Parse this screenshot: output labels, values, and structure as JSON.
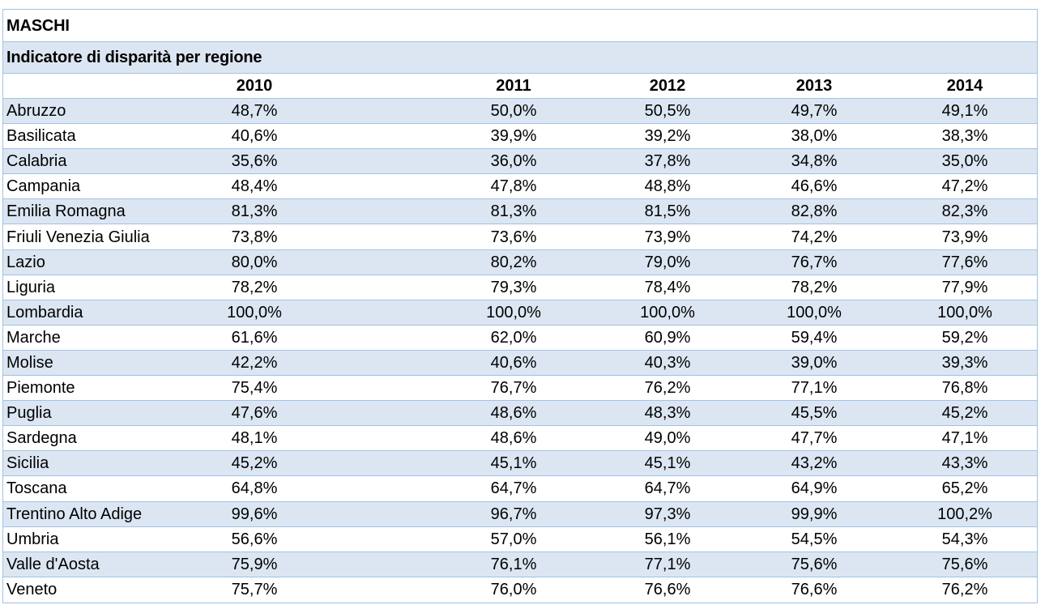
{
  "table": {
    "title": "MASCHI",
    "subtitle": "Indicatore di disparità per regione",
    "years": [
      "2010",
      "2011",
      "2012",
      "2013",
      "2014"
    ],
    "rows": [
      {
        "region": "Abruzzo",
        "values": [
          "48,7%",
          "50,0%",
          "50,5%",
          "49,7%",
          "49,1%"
        ]
      },
      {
        "region": "Basilicata",
        "values": [
          "40,6%",
          "39,9%",
          "39,2%",
          "38,0%",
          "38,3%"
        ]
      },
      {
        "region": "Calabria",
        "values": [
          "35,6%",
          "36,0%",
          "37,8%",
          "34,8%",
          "35,0%"
        ]
      },
      {
        "region": "Campania",
        "values": [
          "48,4%",
          "47,8%",
          "48,8%",
          "46,6%",
          "47,2%"
        ]
      },
      {
        "region": "Emilia Romagna",
        "values": [
          "81,3%",
          "81,3%",
          "81,5%",
          "82,8%",
          "82,3%"
        ]
      },
      {
        "region": "Friuli Venezia Giulia",
        "values": [
          "73,8%",
          "73,6%",
          "73,9%",
          "74,2%",
          "73,9%"
        ]
      },
      {
        "region": "Lazio",
        "values": [
          "80,0%",
          "80,2%",
          "79,0%",
          "76,7%",
          "77,6%"
        ]
      },
      {
        "region": "Liguria",
        "values": [
          "78,2%",
          "79,3%",
          "78,4%",
          "78,2%",
          "77,9%"
        ]
      },
      {
        "region": "Lombardia",
        "values": [
          "100,0%",
          "100,0%",
          "100,0%",
          "100,0%",
          "100,0%"
        ]
      },
      {
        "region": "Marche",
        "values": [
          "61,6%",
          "62,0%",
          "60,9%",
          "59,4%",
          "59,2%"
        ]
      },
      {
        "region": "Molise",
        "values": [
          "42,2%",
          "40,6%",
          "40,3%",
          "39,0%",
          "39,3%"
        ]
      },
      {
        "region": "Piemonte",
        "values": [
          "75,4%",
          "76,7%",
          "76,2%",
          "77,1%",
          "76,8%"
        ]
      },
      {
        "region": "Puglia",
        "values": [
          "47,6%",
          "48,6%",
          "48,3%",
          "45,5%",
          "45,2%"
        ]
      },
      {
        "region": "Sardegna",
        "values": [
          "48,1%",
          "48,6%",
          "49,0%",
          "47,7%",
          "47,1%"
        ]
      },
      {
        "region": "Sicilia",
        "values": [
          "45,2%",
          "45,1%",
          "45,1%",
          "43,2%",
          "43,3%"
        ]
      },
      {
        "region": "Toscana",
        "values": [
          "64,8%",
          "64,7%",
          "64,7%",
          "64,9%",
          "65,2%"
        ]
      },
      {
        "region": "Trentino Alto Adige",
        "values": [
          "99,6%",
          "96,7%",
          "97,3%",
          "99,9%",
          "100,2%"
        ]
      },
      {
        "region": "Umbria",
        "values": [
          "56,6%",
          "57,0%",
          "56,1%",
          "54,5%",
          "54,3%"
        ]
      },
      {
        "region": "Valle d'Aosta",
        "values": [
          "75,9%",
          "76,1%",
          "77,1%",
          "75,6%",
          "75,6%"
        ]
      },
      {
        "region": "Veneto",
        "values": [
          "75,7%",
          "76,0%",
          "76,6%",
          "76,6%",
          "76,2%"
        ]
      }
    ]
  },
  "colors": {
    "band": "#dce6f2",
    "border": "#9ec3e6"
  }
}
